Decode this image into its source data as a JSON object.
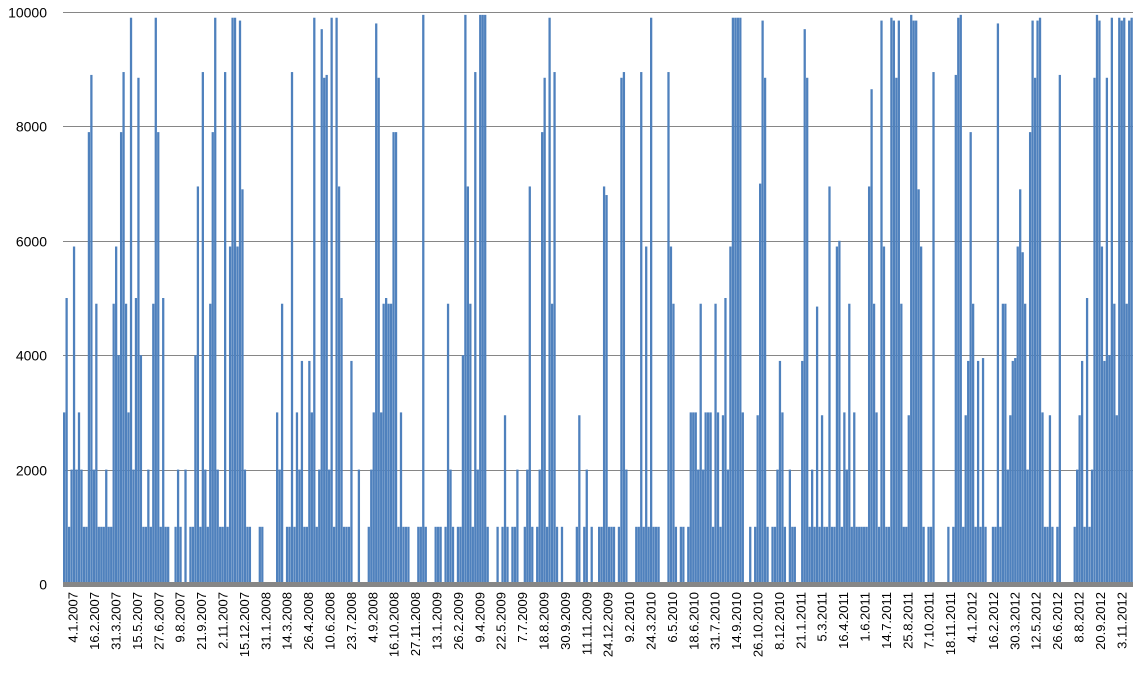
{
  "chart_data": {
    "type": "bar",
    "title": "",
    "xlabel": "",
    "ylabel": "",
    "ylim": [
      0,
      10000
    ],
    "y_ticks": [
      0,
      2000,
      4000,
      6000,
      8000,
      10000
    ],
    "grid": "horizontal",
    "legend": "none",
    "colors": {
      "bar": "#4f81bd",
      "gridline": "#868686",
      "axis": "#868686"
    },
    "x_tick_labels": [
      "4.1.2007",
      "16.2.2007",
      "31.3.2007",
      "15.5.2007",
      "27.6.2007",
      "9.8.2007",
      "21.9.2007",
      "2.11.2007",
      "15.12.2007",
      "31.1.2008",
      "14.3.2008",
      "26.4.2008",
      "10.6.2008",
      "23.7.2008",
      "4.9.2008",
      "16.10.2008",
      "27.11.2008",
      "13.1.2009",
      "26.2.2009",
      "9.4.2009",
      "22.5.2009",
      "7.7.2009",
      "18.8.2009",
      "30.9.2009",
      "11.11.2009",
      "24.12.2009",
      "9.2.2010",
      "24.3.2010",
      "6.5.2010",
      "18.6.2010",
      "31.7.2010",
      "14.9.2010",
      "26.10.2010",
      "8.12.2010",
      "21.1.2011",
      "5.3.2011",
      "16.4.2011",
      "1.6.2011",
      "14.7.2011",
      "25.8.2011",
      "7.10.2011",
      "18.11.2011",
      "4.1.2012",
      "16.2.2012",
      "30.3.2012",
      "12.5.2012",
      "26.6.2012",
      "8.8.2012",
      "20.9.2012",
      "3.11.2012"
    ],
    "series": [
      {
        "values": [
          3000,
          5000,
          1000,
          2000,
          5900,
          2000,
          3000,
          2000,
          1000,
          1000,
          7900,
          8900,
          2000,
          4900,
          1000,
          1000,
          1000,
          2000,
          1000,
          1000,
          4900,
          5900,
          4000,
          7900,
          8950,
          4900,
          3000,
          9900,
          2000,
          5000,
          8850,
          4000,
          1000,
          1000,
          2000,
          1000,
          4900,
          9900,
          7900,
          1000,
          5000,
          1000,
          1000,
          0,
          0,
          1000,
          2000,
          1000,
          0,
          2000,
          0,
          1000,
          1000,
          4000,
          6950,
          1000,
          8950,
          2000,
          1000,
          4900,
          7900,
          9900,
          2000,
          1000,
          1000,
          8950,
          1000,
          5900,
          9900,
          9900,
          5900,
          9850,
          6900,
          2000,
          1000,
          1000,
          0,
          0,
          0,
          1000,
          1000,
          0,
          0,
          0,
          0,
          0,
          3000,
          2000,
          4900,
          0,
          1000,
          1000,
          8950,
          1000,
          3000,
          2000,
          3900,
          1000,
          1000,
          3900,
          3000,
          9900,
          1000,
          2000,
          9700,
          8850,
          8900,
          2000,
          9900,
          1000,
          9900,
          6950,
          5000,
          1000,
          1000,
          1000,
          3900,
          0,
          0,
          2000,
          0,
          0,
          0,
          1000,
          2000,
          3000,
          9800,
          8850,
          3000,
          4900,
          5000,
          4900,
          4900,
          7900,
          7900,
          1000,
          3000,
          1000,
          1000,
          1000,
          0,
          0,
          0,
          1000,
          1000,
          9950,
          1000,
          0,
          0,
          0,
          1000,
          1000,
          1000,
          0,
          1000,
          4900,
          2000,
          1000,
          0,
          1000,
          1000,
          4000,
          9950,
          6950,
          4900,
          1000,
          8950,
          2000,
          9950,
          9950,
          9950,
          1000,
          0,
          0,
          0,
          1000,
          0,
          1000,
          2950,
          1000,
          0,
          1000,
          1000,
          2000,
          0,
          0,
          1000,
          2000,
          6950,
          1000,
          0,
          1000,
          2000,
          7900,
          8850,
          1000,
          9900,
          4900,
          8950,
          1000,
          0,
          1000,
          0,
          0,
          0,
          0,
          0,
          1000,
          2950,
          0,
          1000,
          2000,
          0,
          1000,
          0,
          0,
          1000,
          1000,
          6950,
          6800,
          1000,
          1000,
          1000,
          0,
          1000,
          8850,
          8950,
          2000,
          0,
          0,
          0,
          1000,
          1000,
          8950,
          1000,
          5900,
          1000,
          9900,
          1000,
          1000,
          1000,
          0,
          0,
          0,
          8950,
          5900,
          4900,
          1000,
          0,
          1000,
          1000,
          0,
          1000,
          3000,
          3000,
          3000,
          2000,
          4900,
          2000,
          3000,
          3000,
          3000,
          1000,
          4900,
          3000,
          1000,
          2950,
          5000,
          2000,
          5900,
          9900,
          9900,
          9900,
          9900,
          3000,
          0,
          0,
          1000,
          0,
          1000,
          2950,
          7000,
          9850,
          8850,
          1000,
          0,
          1000,
          1000,
          2000,
          3900,
          3000,
          1000,
          0,
          2000,
          1000,
          1000,
          0,
          0,
          3900,
          9700,
          8850,
          1000,
          2000,
          1000,
          4850,
          1000,
          2950,
          1000,
          1000,
          6950,
          1000,
          1000,
          5900,
          6000,
          1000,
          3000,
          2000,
          4900,
          1000,
          3000,
          1000,
          1000,
          1000,
          1000,
          1000,
          6950,
          8650,
          4900,
          3000,
          1000,
          9850,
          5900,
          1000,
          1000,
          9900,
          9850,
          8850,
          9850,
          4900,
          1000,
          1000,
          2950,
          9950,
          9850,
          9850,
          6900,
          5900,
          1000,
          0,
          1000,
          1000,
          8950,
          0,
          0,
          0,
          0,
          0,
          1000,
          0,
          1000,
          8900,
          9900,
          9950,
          1000,
          2950,
          3900,
          7900,
          4900,
          1000,
          3900,
          1000,
          3950,
          1000,
          0,
          0,
          1000,
          1000,
          9800,
          1000,
          4900,
          4900,
          2000,
          2950,
          3900,
          3950,
          5900,
          6900,
          5800,
          4900,
          2000,
          7900,
          9850,
          8850,
          9850,
          9900,
          3000,
          1000,
          1000,
          2950,
          1000,
          0,
          1000,
          8900,
          0,
          0,
          0,
          0,
          0,
          1000,
          2000,
          2950,
          3900,
          1000,
          5000,
          1000,
          2000,
          8850,
          9950,
          9850,
          5900,
          3900,
          8850,
          4000,
          9900,
          4900,
          2950,
          9900,
          9850,
          9900,
          4900,
          9850,
          9900
        ]
      }
    ]
  }
}
